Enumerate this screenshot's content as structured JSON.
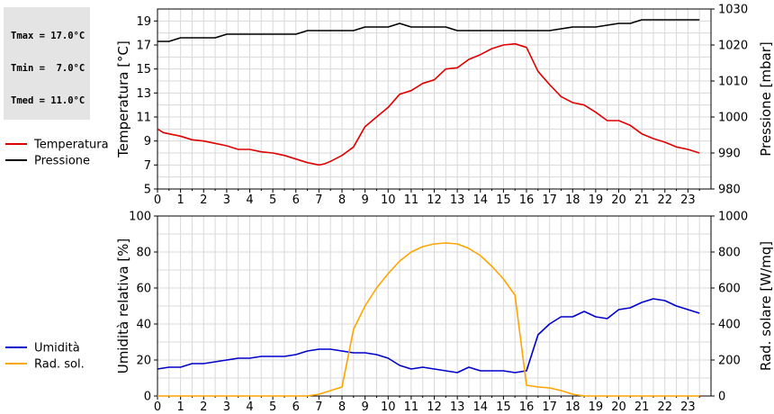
{
  "stats": {
    "tmax": "Tmax = 17.0°C",
    "tmin": "Tmin =  7.0°C",
    "tmed": "Tmed = 11.0°C"
  },
  "colors": {
    "temperature": "#e00000",
    "pressure": "#000000",
    "humidity": "#0000cc",
    "radiation": "#ffa500",
    "grid": "#d8d8d8"
  },
  "chart_data": [
    {
      "type": "line",
      "title": "",
      "xlabel": "",
      "ylabel": "Temperatura [°C]",
      "y2label": "Pressione [mbar]",
      "xlim": [
        0,
        24
      ],
      "ylim": [
        5,
        20
      ],
      "y2lim": [
        980,
        1030
      ],
      "xticks": [
        "0",
        "1",
        "2",
        "3",
        "4",
        "5",
        "6",
        "7",
        "8",
        "9",
        "10",
        "11",
        "12",
        "13",
        "14",
        "15",
        "16",
        "17",
        "18",
        "19",
        "20",
        "21",
        "22",
        "23"
      ],
      "yticks": [
        "5",
        "7",
        "9",
        "11",
        "13",
        "15",
        "17",
        "19"
      ],
      "y2ticks": [
        "980",
        "990",
        "1000",
        "1010",
        "1020",
        "1030"
      ],
      "grid": true,
      "legend_position": "left",
      "series": [
        {
          "name": "Temperatura",
          "axis": "left",
          "x": [
            0,
            0.25,
            0.5,
            1,
            1.5,
            2,
            2.5,
            3,
            3.5,
            4,
            4.5,
            5,
            5.5,
            6,
            6.5,
            7,
            7.25,
            7.5,
            8,
            8.5,
            9,
            9.5,
            10,
            10.5,
            11,
            11.5,
            12,
            12.5,
            13,
            13.5,
            14,
            14.5,
            15,
            15.5,
            16,
            16.5,
            17,
            17.5,
            18,
            18.5,
            19,
            19.5,
            20,
            20.5,
            21,
            21.5,
            22,
            22.5,
            23,
            23.5
          ],
          "y": [
            10,
            9.7,
            9.6,
            9.4,
            9.1,
            9,
            8.8,
            8.6,
            8.3,
            8.3,
            8.1,
            8,
            7.8,
            7.5,
            7.2,
            7,
            7.1,
            7.3,
            7.8,
            8.5,
            10.2,
            11,
            11.8,
            12.9,
            13.2,
            13.8,
            14.1,
            15,
            15.1,
            15.8,
            16.2,
            16.7,
            17,
            17.1,
            16.8,
            14.8,
            13.7,
            12.7,
            12.2,
            12,
            11.4,
            10.7,
            10.7,
            10.3,
            9.6,
            9.2,
            8.9,
            8.5,
            8.3,
            8
          ]
        },
        {
          "name": "Pressione",
          "axis": "right",
          "x": [
            0,
            0.5,
            1,
            2.5,
            3,
            6,
            6.5,
            8.5,
            9,
            10,
            10.5,
            11,
            12.5,
            13,
            16,
            17,
            18,
            19,
            20,
            20.5,
            21,
            22,
            23,
            23.5
          ],
          "y": [
            1021,
            1021,
            1022,
            1022,
            1023,
            1023,
            1024,
            1024,
            1025,
            1025,
            1026,
            1025,
            1025,
            1024,
            1024,
            1024,
            1025,
            1025,
            1026,
            1026,
            1027,
            1027,
            1027,
            1027
          ]
        }
      ]
    },
    {
      "type": "line",
      "title": "",
      "xlabel": "",
      "ylabel": "Umidità relativa [%]",
      "y2label": "Rad. solare [W/mq]",
      "xlim": [
        0,
        24
      ],
      "ylim": [
        0,
        100
      ],
      "y2lim": [
        0,
        1000
      ],
      "xticks": [
        "0",
        "1",
        "2",
        "3",
        "4",
        "5",
        "6",
        "7",
        "8",
        "9",
        "10",
        "11",
        "12",
        "13",
        "14",
        "15",
        "16",
        "17",
        "18",
        "19",
        "20",
        "21",
        "22",
        "23"
      ],
      "yticks": [
        "0",
        "20",
        "40",
        "60",
        "80",
        "100"
      ],
      "y2ticks": [
        "0",
        "200",
        "400",
        "600",
        "800",
        "1000"
      ],
      "grid": true,
      "legend_position": "left",
      "series": [
        {
          "name": "Umidità",
          "axis": "left",
          "x": [
            0,
            0.5,
            1,
            1.5,
            2,
            2.5,
            3,
            3.5,
            4,
            4.5,
            5,
            5.5,
            6,
            6.5,
            7,
            7.5,
            8,
            8.5,
            9,
            9.5,
            10,
            10.5,
            11,
            11.5,
            12,
            12.5,
            13,
            13.5,
            14,
            14.5,
            15,
            15.5,
            16,
            16.5,
            17,
            17.5,
            18,
            18.5,
            19,
            19.5,
            20,
            20.5,
            21,
            21.5,
            22,
            22.5,
            23,
            23.5
          ],
          "y": [
            15,
            16,
            16,
            18,
            18,
            19,
            20,
            21,
            21,
            22,
            22,
            22,
            23,
            25,
            26,
            26,
            25,
            24,
            24,
            23,
            21,
            17,
            15,
            16,
            15,
            14,
            13,
            16,
            14,
            14,
            14,
            13,
            14,
            34,
            40,
            44,
            44,
            47,
            44,
            43,
            48,
            49,
            52,
            54,
            53,
            50,
            48,
            46
          ]
        },
        {
          "name": "Rad. sol.",
          "axis": "right",
          "x": [
            0,
            6.5,
            7,
            7.5,
            8,
            8.5,
            9,
            9.5,
            10,
            10.5,
            11,
            11.5,
            12,
            12.5,
            13,
            13.5,
            14,
            14.5,
            15,
            15.5,
            16,
            16.5,
            17,
            17.5,
            18,
            18.5,
            19,
            23.5
          ],
          "y": [
            0,
            0,
            10,
            30,
            50,
            370,
            500,
            600,
            680,
            750,
            800,
            830,
            845,
            850,
            845,
            820,
            780,
            720,
            650,
            560,
            60,
            50,
            45,
            30,
            10,
            0,
            0,
            0
          ]
        }
      ]
    }
  ]
}
